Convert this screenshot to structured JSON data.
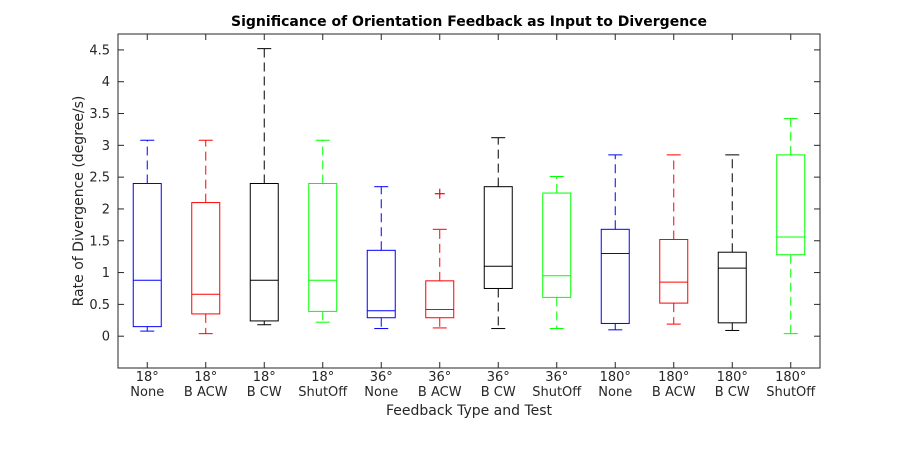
{
  "chart_data": {
    "type": "box",
    "title": "Significance of Orientation Feedback as Input to Divergence",
    "xlabel": "Feedback Type and Test",
    "ylabel": "Rate of Divergence (degree/s)",
    "ylim": [
      -0.5,
      4.75
    ],
    "yticks": [
      0,
      0.5,
      1,
      1.5,
      2,
      2.5,
      3,
      3.5,
      4,
      4.5
    ],
    "grid": false,
    "categories": [
      {
        "line1": "18°",
        "line2": "None",
        "color": "#0000ff",
        "whisker_low": 0.08,
        "q1": 0.15,
        "median": 0.88,
        "q3": 2.4,
        "whisker_high": 3.08,
        "outliers": []
      },
      {
        "line1": "18°",
        "line2": "B ACW",
        "color": "#ff0000",
        "whisker_low": 0.04,
        "q1": 0.35,
        "median": 0.66,
        "q3": 2.1,
        "whisker_high": 3.08,
        "outliers": []
      },
      {
        "line1": "18°",
        "line2": "B CW",
        "color": "#000000",
        "whisker_low": 0.18,
        "q1": 0.24,
        "median": 0.88,
        "q3": 2.4,
        "whisker_high": 4.52,
        "outliers": []
      },
      {
        "line1": "18°",
        "line2": "ShutOff",
        "color": "#00ff00",
        "whisker_low": 0.22,
        "q1": 0.39,
        "median": 0.88,
        "q3": 2.4,
        "whisker_high": 3.08,
        "outliers": []
      },
      {
        "line1": "36°",
        "line2": "None",
        "color": "#0000ff",
        "whisker_low": 0.12,
        "q1": 0.29,
        "median": 0.4,
        "q3": 1.35,
        "whisker_high": 2.35,
        "outliers": []
      },
      {
        "line1": "36°",
        "line2": "B ACW",
        "color": "#ff0000",
        "whisker_low": 0.13,
        "q1": 0.29,
        "median": 0.42,
        "q3": 0.87,
        "whisker_high": 1.68,
        "outliers": [
          2.24
        ]
      },
      {
        "line1": "36°",
        "line2": "B CW",
        "color": "#000000",
        "whisker_low": 0.12,
        "q1": 0.75,
        "median": 1.1,
        "q3": 2.35,
        "whisker_high": 3.12,
        "outliers": []
      },
      {
        "line1": "36°",
        "line2": "ShutOff",
        "color": "#00ff00",
        "whisker_low": 0.12,
        "q1": 0.61,
        "median": 0.95,
        "q3": 2.25,
        "whisker_high": 2.51,
        "outliers": []
      },
      {
        "line1": "180°",
        "line2": "None",
        "color": "#0000ff",
        "whisker_low": 0.1,
        "q1": 0.2,
        "median": 1.3,
        "q3": 1.68,
        "whisker_high": 2.85,
        "outliers": []
      },
      {
        "line1": "180°",
        "line2": "B ACW",
        "color": "#ff0000",
        "whisker_low": 0.19,
        "q1": 0.52,
        "median": 0.85,
        "q3": 1.52,
        "whisker_high": 2.85,
        "outliers": []
      },
      {
        "line1": "180°",
        "line2": "B CW",
        "color": "#000000",
        "whisker_low": 0.09,
        "q1": 0.21,
        "median": 1.07,
        "q3": 1.32,
        "whisker_high": 2.85,
        "outliers": []
      },
      {
        "line1": "180°",
        "line2": "ShutOff",
        "color": "#00ff00",
        "whisker_low": 0.04,
        "q1": 1.28,
        "median": 1.56,
        "q3": 2.85,
        "whisker_high": 3.42,
        "outliers": []
      }
    ]
  }
}
